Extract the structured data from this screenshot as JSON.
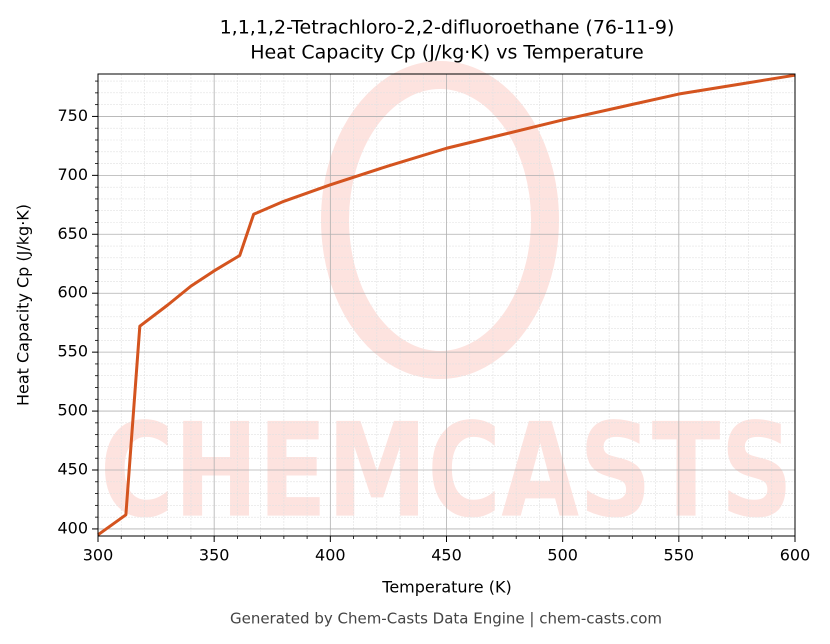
{
  "chart_data": {
    "type": "line",
    "title": "1,1,1,2-Tetrachloro-2,2-difluoroethane (76-11-9)",
    "subtitle": "Heat Capacity Cp (J/kg·K) vs Temperature",
    "x_label": "Temperature (K)",
    "y_label": "Heat Capacity Cp (J/kg·K)",
    "footer": "Generated by Chem-Casts Data Engine | chem-casts.com",
    "watermark": "CHEMCASTS",
    "x": [
      300,
      312,
      318,
      330,
      340,
      350,
      361,
      367,
      380,
      400,
      425,
      450,
      475,
      500,
      525,
      550,
      575,
      600
    ],
    "values": [
      395,
      412,
      572,
      590,
      606,
      619,
      632,
      667,
      678,
      692,
      708,
      723,
      735,
      747,
      758,
      769,
      777,
      785
    ],
    "color": "#d4541f",
    "xlim": [
      300,
      600
    ],
    "ylim": [
      394,
      786
    ],
    "xticks": [
      300,
      350,
      400,
      450,
      500,
      550,
      600
    ],
    "yticks": [
      400,
      450,
      500,
      550,
      600,
      650,
      700,
      750
    ],
    "xminorticks": [
      310,
      320,
      330,
      340,
      360,
      370,
      380,
      390,
      410,
      420,
      430,
      440,
      460,
      470,
      480,
      490,
      510,
      520,
      530,
      540,
      560,
      570,
      580,
      590
    ],
    "yminorticks": [
      410,
      420,
      430,
      440,
      460,
      470,
      480,
      490,
      510,
      520,
      530,
      540,
      560,
      570,
      580,
      590,
      610,
      620,
      630,
      640,
      660,
      670,
      680,
      690,
      710,
      720,
      730,
      740,
      760,
      770,
      780
    ],
    "grid": true,
    "minor_grid": true
  }
}
